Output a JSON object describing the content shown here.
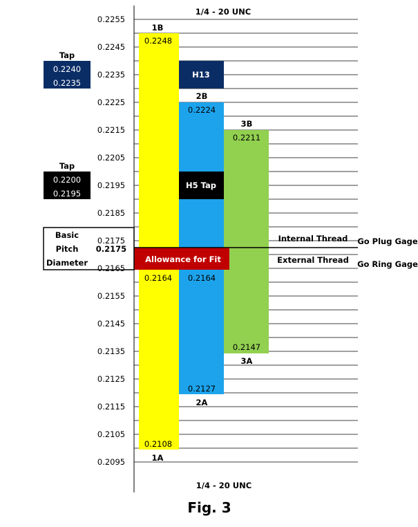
{
  "header": {
    "title_top": "1/4 - 20 UNC",
    "title_bottom": "1/4 - 20 UNC"
  },
  "figure_caption": "Fig. 3",
  "scale": {
    "ticks": [
      "0.2255",
      "0.2245",
      "0.2235",
      "0.2225",
      "0.2215",
      "0.2205",
      "0.2195",
      "0.2185",
      "0.2175",
      "0.2165",
      "0.2155",
      "0.2145",
      "0.2135",
      "0.2125",
      "0.2115",
      "0.2105",
      "0.2095"
    ]
  },
  "basic": {
    "line1": "Basic",
    "line2": "Pitch",
    "line3": "Diameter",
    "value": "0.2175"
  },
  "tap_h13": {
    "title": "Tap",
    "upper": "0.2240",
    "lower": "0.2235",
    "label": "H13",
    "color": "#0b2d66"
  },
  "tap_h5": {
    "title": "Tap",
    "upper": "0.2200",
    "lower": "0.2195",
    "label": "H5 Tap",
    "color": "#000000"
  },
  "classes": {
    "c1b": {
      "label": "1B",
      "value": "0.2248"
    },
    "c2b": {
      "label": "2B",
      "value": "0.2224"
    },
    "c3b": {
      "label": "3B",
      "value": "0.2211"
    },
    "c1a": {
      "label": "1A",
      "value": "0.2108"
    },
    "c2a": {
      "label": "2A",
      "value": "0.2164",
      "value_bottom": "0.2127"
    },
    "c3a": {
      "label": "3A",
      "value": "0.2147"
    },
    "c1a_top": {
      "value": "0.2164"
    }
  },
  "colors": {
    "yellow": "#ffff00",
    "blue": "#1ca3ec",
    "green": "#92d050",
    "red": "#c00000"
  },
  "allowance": {
    "label": "Allowance for Fit"
  },
  "threads": {
    "internal": "Internal Thread",
    "external": "External Thread"
  },
  "gages": {
    "plug": "Go Plug Gage",
    "ring": "Go Ring Gage"
  }
}
